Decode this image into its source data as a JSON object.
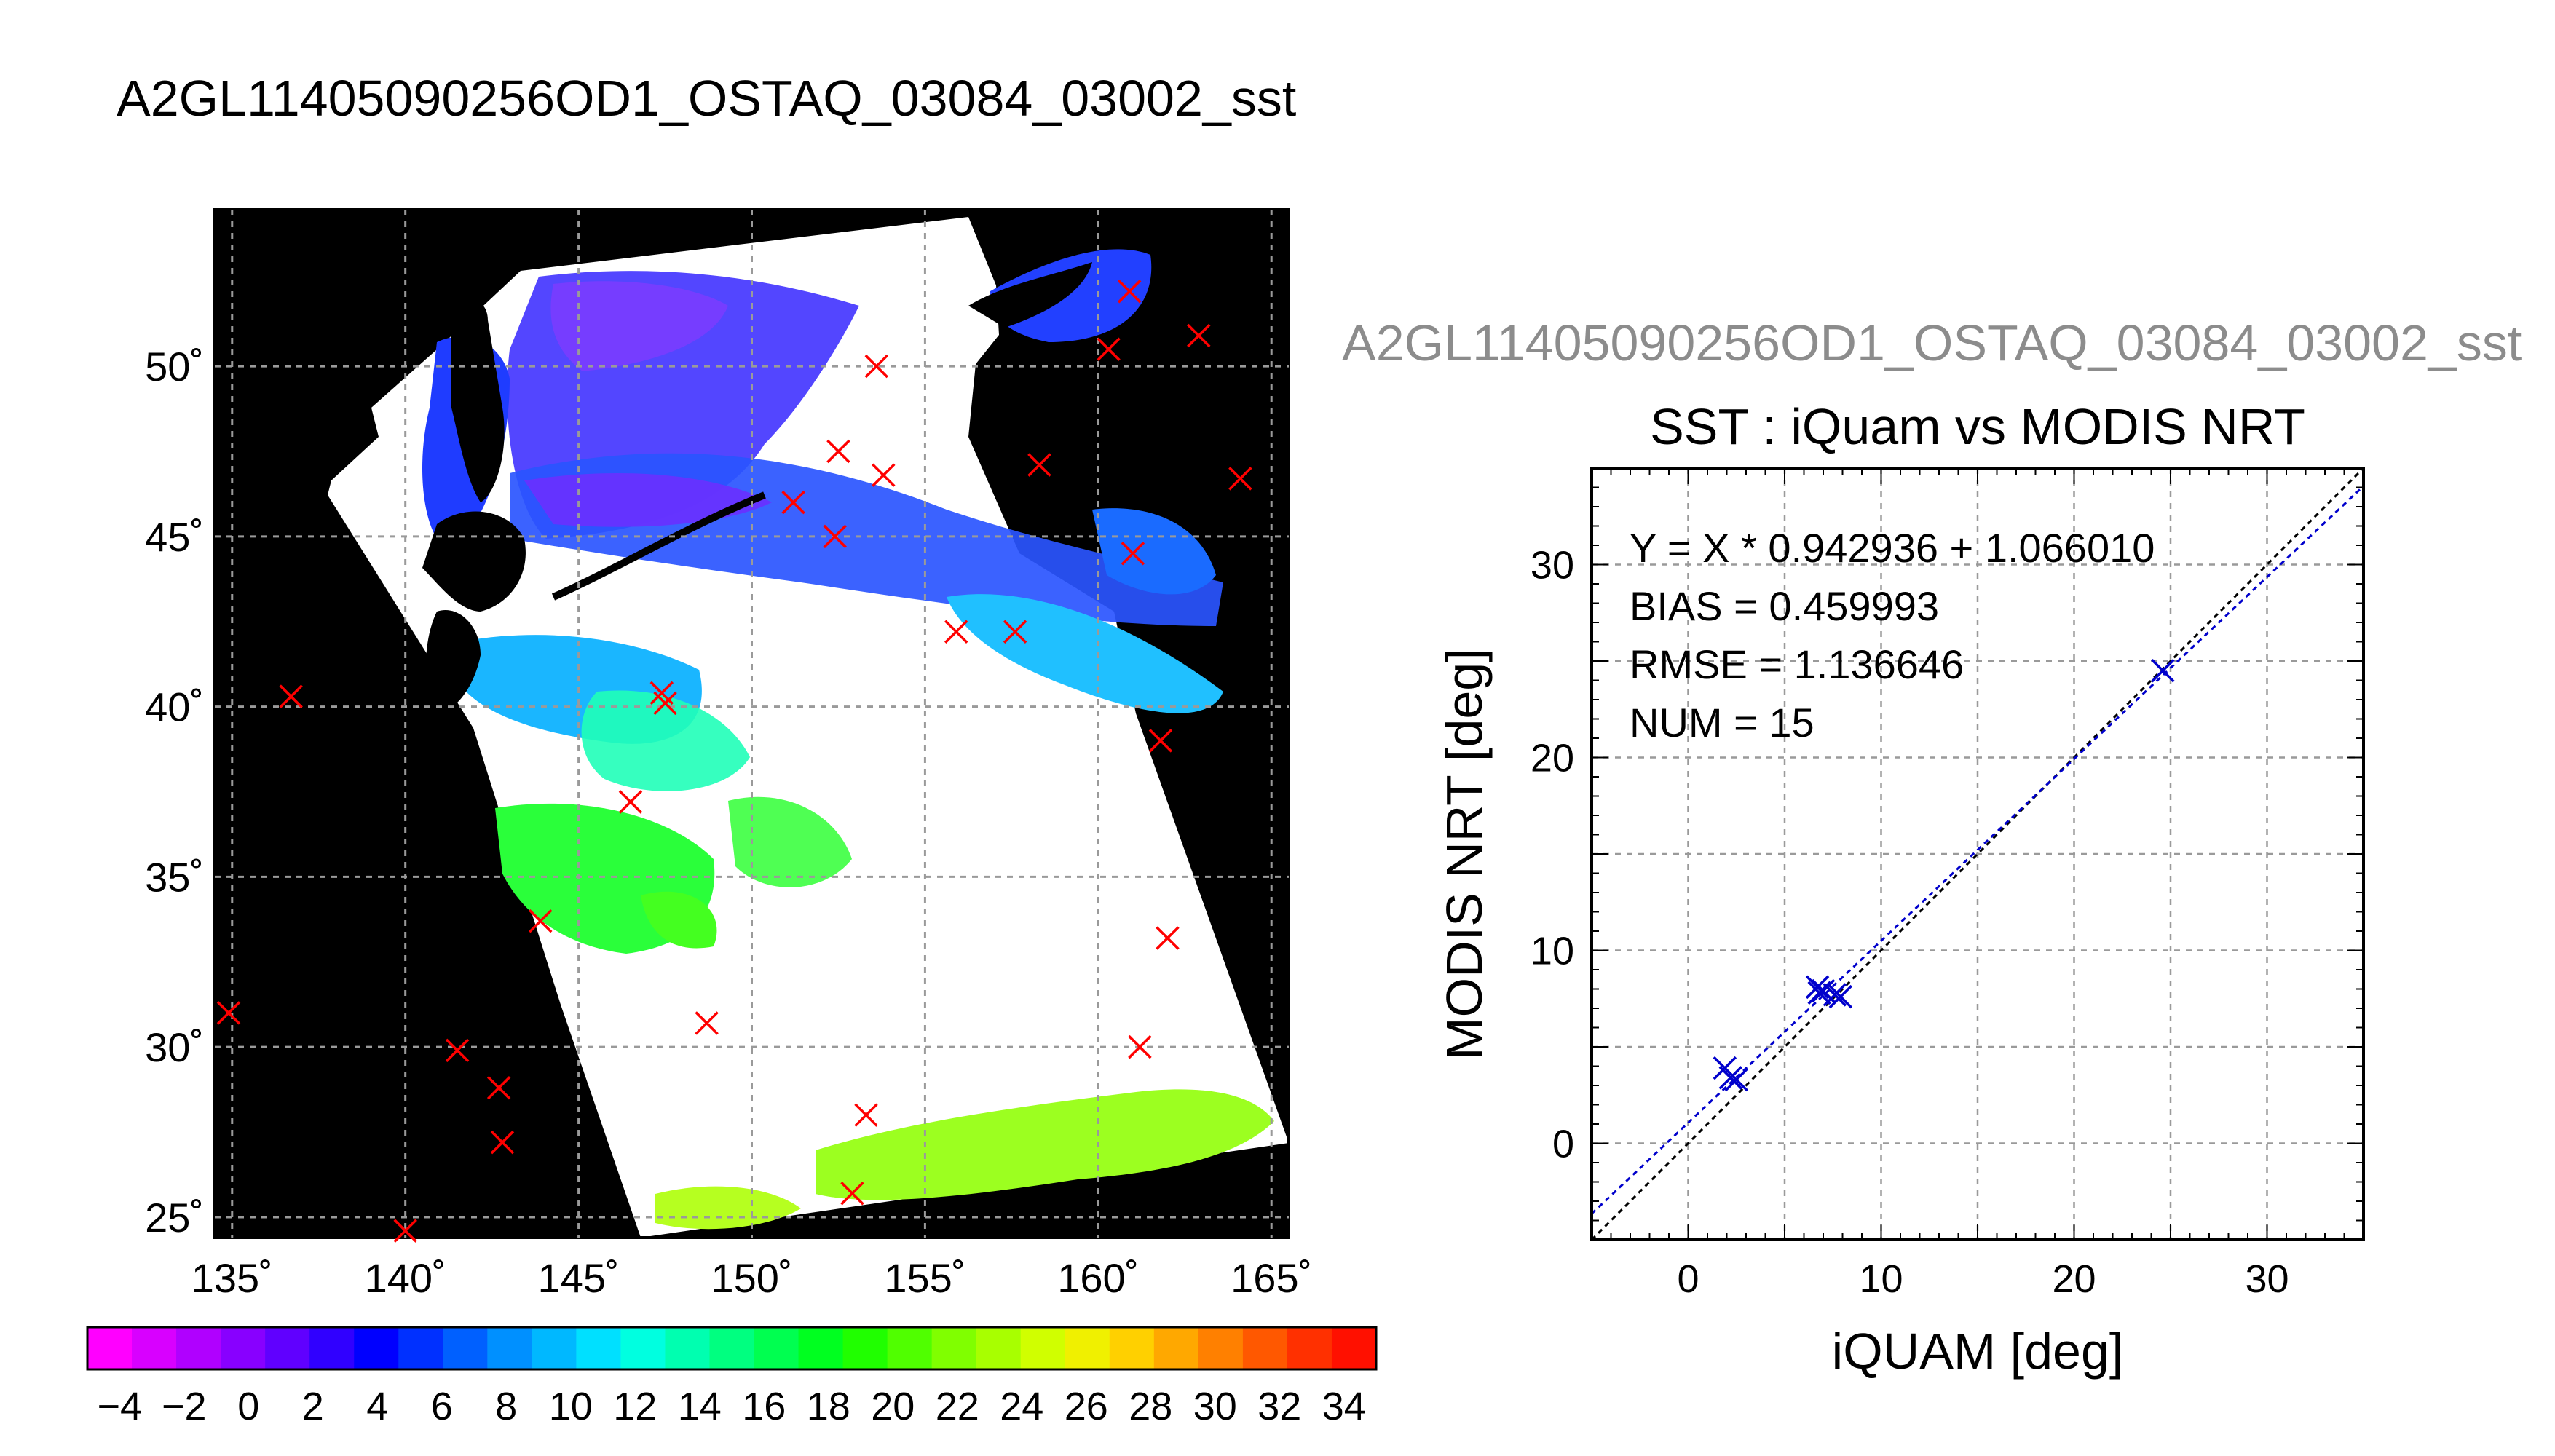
{
  "main_title": "A2GL11405090256OD1_OSTAQ_03084_03002_sst",
  "colors": {
    "marker_map": "#ff0000",
    "marker_scatter": "#0000cc",
    "fit_line": "#0000cc",
    "identity_line": "#000000",
    "land": "#000000",
    "cloud": "#ffffff",
    "grid": "#9a9a9a",
    "ghost_title": "#8c8c8c"
  },
  "chart_data": [
    {
      "type": "map",
      "title": "",
      "projection": "lon-lat",
      "xlim": [
        134.5,
        165.5
      ],
      "ylim": [
        24.4,
        54.6
      ],
      "x_ticks": [
        135,
        140,
        145,
        150,
        155,
        160,
        165
      ],
      "x_tick_labels": [
        "135˚",
        "140˚",
        "145˚",
        "150˚",
        "155˚",
        "160˚",
        "165˚"
      ],
      "y_ticks": [
        25,
        30,
        35,
        40,
        45,
        50
      ],
      "y_tick_labels": [
        "25˚",
        "30˚",
        "35˚",
        "40˚",
        "45˚",
        "50˚"
      ],
      "grid": true,
      "match_points": [
        {
          "lon": 134.9,
          "lat": 31.0
        },
        {
          "lon": 136.7,
          "lat": 40.3
        },
        {
          "lon": 140.0,
          "lat": 24.6
        },
        {
          "lon": 141.5,
          "lat": 29.9
        },
        {
          "lon": 142.7,
          "lat": 28.8
        },
        {
          "lon": 142.8,
          "lat": 27.2
        },
        {
          "lon": 143.9,
          "lat": 33.7
        },
        {
          "lon": 146.5,
          "lat": 37.2
        },
        {
          "lon": 147.4,
          "lat": 40.4
        },
        {
          "lon": 147.5,
          "lat": 40.1
        },
        {
          "lon": 148.7,
          "lat": 30.7
        },
        {
          "lon": 151.2,
          "lat": 46.0
        },
        {
          "lon": 152.4,
          "lat": 45.0
        },
        {
          "lon": 152.5,
          "lat": 47.5
        },
        {
          "lon": 152.9,
          "lat": 25.7
        },
        {
          "lon": 153.3,
          "lat": 28.0
        },
        {
          "lon": 153.8,
          "lat": 46.8
        },
        {
          "lon": 153.6,
          "lat": 50.0
        },
        {
          "lon": 155.9,
          "lat": 42.2
        },
        {
          "lon": 157.6,
          "lat": 42.2
        },
        {
          "lon": 158.3,
          "lat": 47.1
        },
        {
          "lon": 160.3,
          "lat": 50.5
        },
        {
          "lon": 160.9,
          "lat": 52.2
        },
        {
          "lon": 161.0,
          "lat": 44.5
        },
        {
          "lon": 161.2,
          "lat": 30.0
        },
        {
          "lon": 161.8,
          "lat": 39.0
        },
        {
          "lon": 162.0,
          "lat": 33.2
        },
        {
          "lon": 162.9,
          "lat": 50.9
        },
        {
          "lon": 164.1,
          "lat": 46.7
        }
      ],
      "colorbar": {
        "min": -5,
        "max": 35,
        "tick_values": [
          -4,
          -2,
          0,
          2,
          4,
          6,
          8,
          10,
          12,
          14,
          16,
          18,
          20,
          22,
          24,
          26,
          28,
          30,
          32,
          34
        ],
        "tick_labels": [
          "−4",
          "−2",
          "0",
          "2",
          "4",
          "6",
          "8",
          "10",
          "12",
          "14",
          "16",
          "18",
          "20",
          "22",
          "24",
          "26",
          "28",
          "30",
          "32",
          "34"
        ],
        "colors": [
          "#ff00ff",
          "#d800ff",
          "#b000ff",
          "#8800ff",
          "#6000ff",
          "#3000ff",
          "#0000ff",
          "#0030ff",
          "#0060ff",
          "#0090ff",
          "#00b8ff",
          "#00e0ff",
          "#00ffe0",
          "#00ffb0",
          "#00ff80",
          "#00ff50",
          "#00ff20",
          "#20ff00",
          "#50ff00",
          "#80ff00",
          "#a8ff00",
          "#d0ff00",
          "#f0f000",
          "#ffd000",
          "#ffa800",
          "#ff8000",
          "#ff5800",
          "#ff3000",
          "#ff1000"
        ]
      }
    },
    {
      "type": "scatter",
      "ghost_title": "A2GL11405090256OD1_OSTAQ_03084_03002_sst",
      "title": "SST : iQuam vs MODIS NRT",
      "xlabel": "iQUAM [deg]",
      "ylabel": "MODIS NRT [deg]",
      "xlim": [
        -5,
        35
      ],
      "ylim": [
        -5,
        35
      ],
      "x_ticks": [
        0,
        10,
        20,
        30
      ],
      "y_ticks": [
        0,
        10,
        20,
        30
      ],
      "grid": true,
      "stats": [
        "Y = X * 0.942936 + 1.066010",
        "BIAS = 0.459993",
        "RMSE = 1.136646",
        "NUM = 15"
      ],
      "fit": {
        "slope": 0.942936,
        "intercept": 1.06601
      },
      "points": [
        {
          "x": 1.9,
          "y": 3.9
        },
        {
          "x": 2.2,
          "y": 3.4
        },
        {
          "x": 2.5,
          "y": 3.3
        },
        {
          "x": 6.7,
          "y": 8.1
        },
        {
          "x": 6.8,
          "y": 7.8
        },
        {
          "x": 7.0,
          "y": 7.9
        },
        {
          "x": 7.6,
          "y": 7.7
        },
        {
          "x": 7.9,
          "y": 7.6
        },
        {
          "x": 24.6,
          "y": 24.5
        }
      ]
    }
  ]
}
